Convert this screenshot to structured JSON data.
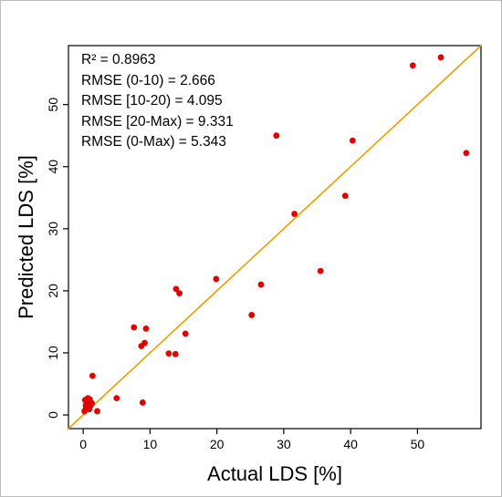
{
  "chart_data": {
    "type": "scatter",
    "xlabel": "Actual LDS [%]",
    "ylabel": "Predicted LDS [%]",
    "xlim": [
      -2.2,
      59.5
    ],
    "ylim": [
      -2.2,
      59.5
    ],
    "xticks": [
      0,
      10,
      20,
      30,
      40,
      50
    ],
    "yticks": [
      0,
      10,
      20,
      30,
      40,
      50
    ],
    "point_color": "#e00000",
    "line_color": "#e8a000",
    "reference_line": "y = x",
    "grid": false,
    "annotations": [
      "R² = 0.8963",
      "RMSE (0-10) = 2.666",
      "RMSE [10-20) = 4.095",
      "RMSE [20-Max) = 9.331",
      "RMSE (0-Max) = 5.343"
    ],
    "points": [
      {
        "x": 0.2,
        "y": 0.6
      },
      {
        "x": 0.4,
        "y": 1.0
      },
      {
        "x": 0.6,
        "y": 1.4
      },
      {
        "x": 0.3,
        "y": 2.4
      },
      {
        "x": 0.7,
        "y": 2.7
      },
      {
        "x": 1.0,
        "y": 2.5
      },
      {
        "x": 0.5,
        "y": 1.9
      },
      {
        "x": 0.8,
        "y": 1.6
      },
      {
        "x": 1.1,
        "y": 1.5
      },
      {
        "x": 1.3,
        "y": 1.9
      },
      {
        "x": 0.9,
        "y": 0.9
      },
      {
        "x": 0.4,
        "y": 1.5
      },
      {
        "x": 1.4,
        "y": 6.3
      },
      {
        "x": 2.1,
        "y": 0.6
      },
      {
        "x": 5.0,
        "y": 2.7
      },
      {
        "x": 7.6,
        "y": 14.1
      },
      {
        "x": 8.7,
        "y": 11.1
      },
      {
        "x": 9.2,
        "y": 11.6
      },
      {
        "x": 9.4,
        "y": 13.9
      },
      {
        "x": 8.9,
        "y": 2.0
      },
      {
        "x": 12.8,
        "y": 9.9
      },
      {
        "x": 13.8,
        "y": 9.8
      },
      {
        "x": 13.9,
        "y": 20.3
      },
      {
        "x": 14.4,
        "y": 19.6
      },
      {
        "x": 15.3,
        "y": 13.1
      },
      {
        "x": 19.9,
        "y": 21.9
      },
      {
        "x": 25.2,
        "y": 16.1
      },
      {
        "x": 26.6,
        "y": 21.0
      },
      {
        "x": 28.9,
        "y": 45.0
      },
      {
        "x": 31.6,
        "y": 32.4
      },
      {
        "x": 35.5,
        "y": 23.2
      },
      {
        "x": 39.2,
        "y": 35.3
      },
      {
        "x": 40.3,
        "y": 44.2
      },
      {
        "x": 49.3,
        "y": 56.3
      },
      {
        "x": 53.5,
        "y": 57.6
      },
      {
        "x": 57.3,
        "y": 42.2
      }
    ]
  }
}
